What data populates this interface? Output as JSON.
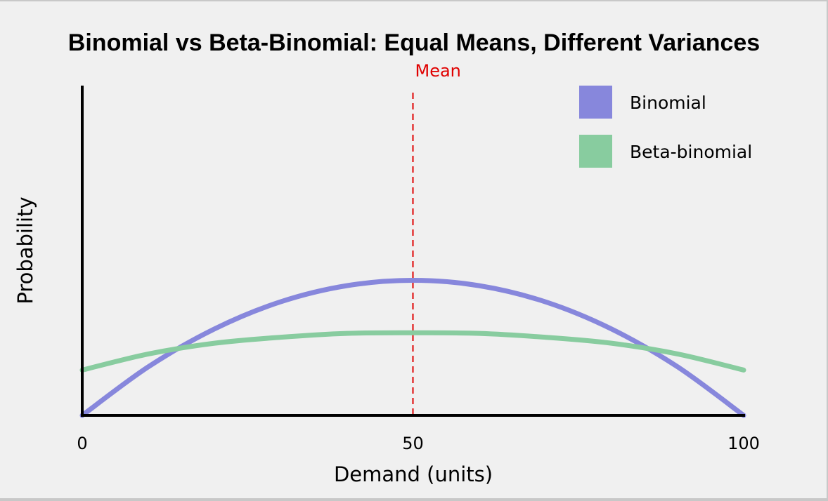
{
  "chart_data": {
    "type": "line",
    "title": "Binomial vs Beta-Binomial: Equal Means, Different Variances",
    "xlabel": "Demand (units)",
    "ylabel": "Probability",
    "xlim": [
      0,
      100
    ],
    "ylim": [
      0,
      1
    ],
    "x_ticks": [
      {
        "value": 0,
        "label": "0"
      },
      {
        "value": 50,
        "label": "50"
      },
      {
        "value": 100,
        "label": "100"
      }
    ],
    "grid": false,
    "legend_position": "top-right",
    "series": [
      {
        "name": "Binomial",
        "color": "#8787dc",
        "x": [
          0,
          10,
          20,
          30,
          40,
          50,
          60,
          70,
          80,
          90,
          100
        ],
        "y": [
          0.0,
          0.163,
          0.29,
          0.381,
          0.435,
          0.453,
          0.435,
          0.381,
          0.29,
          0.163,
          0.0
        ]
      },
      {
        "name": "Beta-binomial",
        "color": "#88cc9f",
        "x": [
          0,
          10,
          20,
          30,
          40,
          50,
          60,
          70,
          80,
          90,
          100
        ],
        "y": [
          0.152,
          0.206,
          0.242,
          0.262,
          0.275,
          0.277,
          0.275,
          0.262,
          0.242,
          0.206,
          0.152
        ]
      }
    ],
    "annotations": [
      {
        "type": "vline",
        "x": 50,
        "label": "Mean",
        "color": "#e00000",
        "style": "dashed"
      }
    ]
  }
}
